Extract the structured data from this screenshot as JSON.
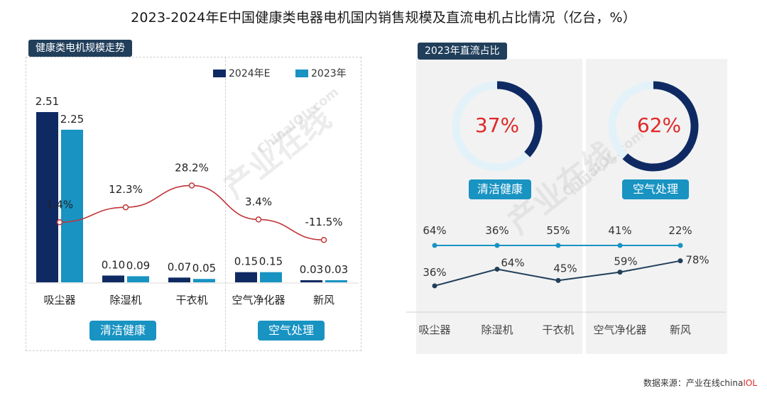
{
  "title": "2023-2024年E中国健康类电器电机国内销售规模及直流电机占比情况（亿台，%）",
  "left_panel_label": "健康类电机规模走势",
  "right_panel_label": "2023年直流占比",
  "groups": [
    "清洁健康",
    "空气处理"
  ],
  "donuts": [
    {
      "group": "清洁健康",
      "label": "37%",
      "value": 37
    },
    {
      "group": "空气处理",
      "label": "62%",
      "value": 62
    }
  ],
  "watermark": {
    "cn": "产业在线",
    "en": "ChinaIOL.com"
  },
  "source": {
    "prefix": "数据来源：产业在线",
    "brand_plain": "china",
    "brand_red": "IOL"
  },
  "colors": {
    "dark_navy": "#0f2a63",
    "teal": "#1893c2",
    "red": "#c0353a",
    "dark_line": "#213f5b",
    "donut_track": "#e3f2f8"
  },
  "chart_data": [
    {
      "type": "bar",
      "title": "健康类电机规模走势",
      "categories": [
        "吸尘器",
        "除湿机",
        "干衣机",
        "空气净化器",
        "新风"
      ],
      "series": [
        {
          "name": "2024年E",
          "values": [
            2.51,
            0.1,
            0.07,
            0.15,
            0.03
          ],
          "labels": [
            "2.51",
            "0.10",
            "0.07",
            "0.15",
            "0.03"
          ],
          "color": "#0f2a63"
        },
        {
          "name": "2023年",
          "values": [
            2.25,
            0.09,
            0.05,
            0.15,
            0.03
          ],
          "labels": [
            "2.25",
            "0.09",
            "0.05",
            "0.15",
            "0.03"
          ],
          "color": "#1893c2"
        }
      ],
      "growth": {
        "values": [
          1.4,
          12.3,
          28.2,
          3.4,
          -11.5
        ],
        "labels": [
          "1.4%",
          "12.3%",
          "28.2%",
          "3.4%",
          "-11.5%"
        ],
        "color": "#c0353a"
      },
      "ylim": [
        0,
        2.6
      ],
      "legend": "top-right"
    },
    {
      "type": "line",
      "title": "2023年直流占比",
      "categories": [
        "吸尘器",
        "除湿机",
        "干衣机",
        "空气净化器",
        "新风"
      ],
      "series": [
        {
          "values": [
            64,
            36,
            55,
            41,
            22
          ],
          "labels": [
            "64%",
            "36%",
            "55%",
            "41%",
            "22%"
          ],
          "color": "#1893c2"
        },
        {
          "values": [
            36,
            64,
            45,
            59,
            78
          ],
          "labels": [
            "36%",
            "64%",
            "45%",
            "59%",
            "78%"
          ],
          "color": "#213f5b"
        }
      ]
    }
  ]
}
